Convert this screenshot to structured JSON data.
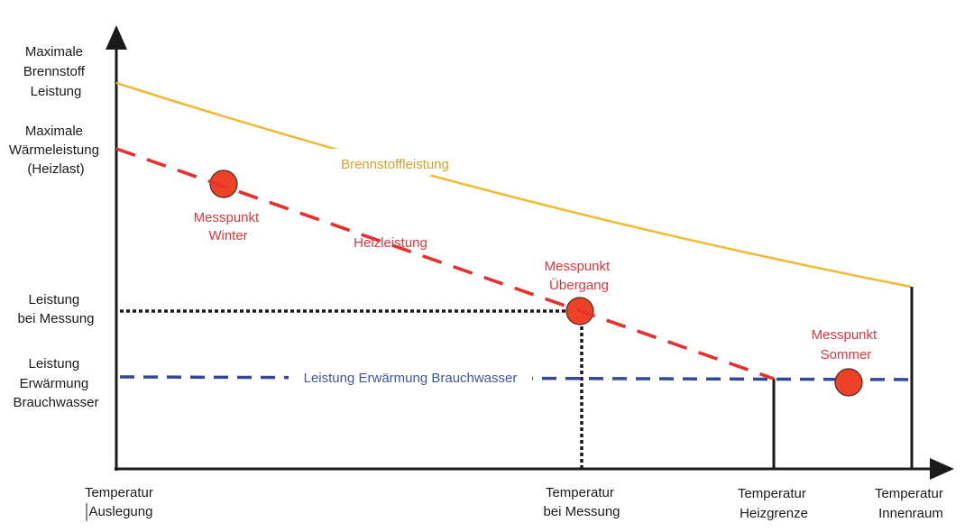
{
  "y_axis_labels": {
    "max_fuel": [
      "Maximale",
      "Brennstoff",
      "Leistung"
    ],
    "max_heat": [
      "Maximale",
      "Wärmeleistung",
      "(Heizlast)"
    ],
    "measured_power": [
      "Leistung",
      "bei Messung"
    ],
    "hot_water_power": [
      "Leistung",
      "Erwärmung",
      "Brauchwasser"
    ]
  },
  "x_axis_labels": {
    "design": [
      "Temperatur",
      "Auslegung"
    ],
    "measurement": [
      "Temperatur",
      "bei Messung"
    ],
    "heating_limit": [
      "Temperatur",
      "Heizgrenze"
    ],
    "indoor": [
      "Temperatur",
      "Innenraum"
    ]
  },
  "curves": {
    "fuel": "Brennstoffleistung",
    "heating": "Heizleistung",
    "hot_water": "Leistung Erwärmung Brauchwasser"
  },
  "points": {
    "winter": [
      "Messpunkt",
      "Winter"
    ],
    "transition": [
      "Messpunkt",
      "Übergang"
    ],
    "summer": [
      "Messpunkt",
      "Sommer"
    ]
  },
  "colors": {
    "fuel": "#f0b933",
    "fuel_text": "#d4a22a",
    "heating": "#e8312f",
    "heating_text": "#e0363c",
    "hot_water": "#34479a",
    "hot_water_text": "#3d56a3",
    "point_fill": "#ee4126"
  }
}
